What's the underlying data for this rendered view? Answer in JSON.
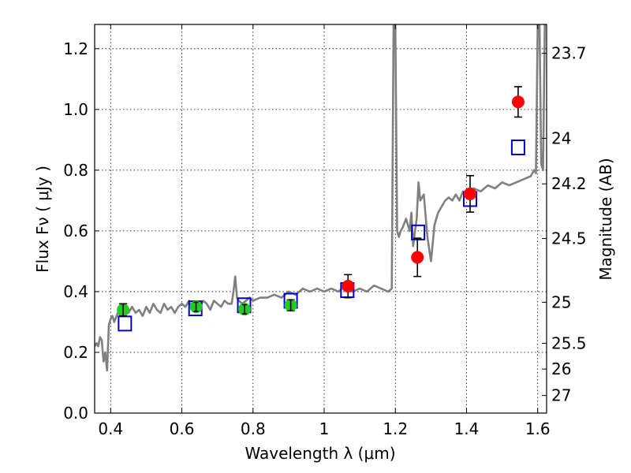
{
  "chart_data": {
    "type": "scatter",
    "xlabel": "Wavelength  λ (μm)",
    "ylabel": "Flux  Fν  ( μJy )",
    "ylabel_right": "Magnitude (AB)",
    "xlim": [
      0.355,
      1.625
    ],
    "ylim": [
      0.0,
      1.28
    ],
    "grid": true,
    "x_ticks": [
      {
        "value": 0.4,
        "label": "0.4"
      },
      {
        "value": 0.6,
        "label": "0.6"
      },
      {
        "value": 0.8,
        "label": "0.8"
      },
      {
        "value": 1.0,
        "label": "1"
      },
      {
        "value": 1.2,
        "label": "1.2"
      },
      {
        "value": 1.4,
        "label": "1.4"
      },
      {
        "value": 1.6,
        "label": "1.6"
      }
    ],
    "y_ticks": [
      {
        "value": 0.0,
        "label": "0.0"
      },
      {
        "value": 0.2,
        "label": "0.2"
      },
      {
        "value": 0.4,
        "label": "0.4"
      },
      {
        "value": 0.6,
        "label": "0.6"
      },
      {
        "value": 0.8,
        "label": "0.8"
      },
      {
        "value": 1.0,
        "label": "1.0"
      },
      {
        "value": 1.2,
        "label": "1.2"
      }
    ],
    "right_ticks": [
      {
        "flux": 1.185,
        "label": "23.7"
      },
      {
        "flux": 0.905,
        "label": "24"
      },
      {
        "flux": 0.755,
        "label": "24.2"
      },
      {
        "flux": 0.575,
        "label": "24.5"
      },
      {
        "flux": 0.365,
        "label": "25"
      },
      {
        "flux": 0.23,
        "label": "25.5"
      },
      {
        "flux": 0.145,
        "label": "26"
      },
      {
        "flux": 0.058,
        "label": "27"
      }
    ],
    "series": [
      {
        "name": "model spectrum",
        "kind": "line",
        "color": "#808080",
        "x": [
          0.355,
          0.36,
          0.365,
          0.37,
          0.375,
          0.38,
          0.385,
          0.39,
          0.395,
          0.4,
          0.405,
          0.41,
          0.42,
          0.43,
          0.44,
          0.45,
          0.46,
          0.47,
          0.48,
          0.49,
          0.5,
          0.51,
          0.52,
          0.53,
          0.54,
          0.55,
          0.56,
          0.57,
          0.58,
          0.59,
          0.6,
          0.61,
          0.62,
          0.63,
          0.64,
          0.65,
          0.66,
          0.67,
          0.68,
          0.69,
          0.7,
          0.71,
          0.72,
          0.73,
          0.74,
          0.745,
          0.75,
          0.755,
          0.76,
          0.77,
          0.78,
          0.79,
          0.8,
          0.82,
          0.84,
          0.86,
          0.88,
          0.9,
          0.92,
          0.94,
          0.96,
          0.98,
          1.0,
          1.02,
          1.04,
          1.06,
          1.08,
          1.1,
          1.12,
          1.14,
          1.16,
          1.18,
          1.19,
          1.195,
          1.2,
          1.205,
          1.21,
          1.215,
          1.22,
          1.23,
          1.24,
          1.245,
          1.25,
          1.255,
          1.26,
          1.265,
          1.27,
          1.28,
          1.29,
          1.3,
          1.31,
          1.32,
          1.33,
          1.34,
          1.35,
          1.36,
          1.37,
          1.38,
          1.39,
          1.4,
          1.42,
          1.44,
          1.46,
          1.48,
          1.5,
          1.52,
          1.54,
          1.56,
          1.58,
          1.59,
          1.595,
          1.6,
          1.605,
          1.61,
          1.615,
          1.62,
          1.625
        ],
        "y": [
          0.22,
          0.23,
          0.22,
          0.25,
          0.24,
          0.17,
          0.2,
          0.14,
          0.29,
          0.31,
          0.32,
          0.3,
          0.33,
          0.32,
          0.34,
          0.33,
          0.35,
          0.33,
          0.34,
          0.32,
          0.35,
          0.33,
          0.36,
          0.34,
          0.33,
          0.36,
          0.34,
          0.35,
          0.33,
          0.35,
          0.36,
          0.35,
          0.37,
          0.34,
          0.36,
          0.35,
          0.37,
          0.36,
          0.34,
          0.37,
          0.36,
          0.35,
          0.37,
          0.36,
          0.36,
          0.4,
          0.45,
          0.38,
          0.37,
          0.36,
          0.37,
          0.38,
          0.37,
          0.38,
          0.38,
          0.39,
          0.38,
          0.4,
          0.39,
          0.41,
          0.4,
          0.41,
          0.4,
          0.41,
          0.4,
          0.42,
          0.4,
          0.41,
          0.4,
          0.42,
          0.41,
          0.4,
          0.41,
          1.28,
          1.28,
          0.6,
          0.58,
          0.6,
          0.61,
          0.64,
          0.6,
          0.66,
          0.55,
          0.6,
          0.64,
          0.76,
          0.7,
          0.72,
          0.58,
          0.5,
          0.62,
          0.66,
          0.68,
          0.7,
          0.71,
          0.7,
          0.72,
          0.7,
          0.73,
          0.72,
          0.74,
          0.73,
          0.75,
          0.74,
          0.76,
          0.75,
          0.76,
          0.77,
          0.78,
          0.8,
          0.79,
          1.28,
          1.28,
          0.82,
          0.8,
          1.28,
          1.28
        ]
      },
      {
        "name": "blue model photometry",
        "kind": "open-square",
        "color": "#0000cc",
        "x": [
          0.44,
          0.638,
          0.775,
          0.906,
          1.065,
          1.264,
          1.41,
          1.545
        ],
        "y": [
          0.295,
          0.345,
          0.355,
          0.37,
          0.405,
          0.595,
          0.705,
          0.875
        ]
      },
      {
        "name": "green observed points",
        "kind": "marker",
        "color": "#22cc22",
        "x": [
          0.435,
          0.64,
          0.776,
          0.906
        ],
        "y": [
          0.34,
          0.35,
          0.342,
          0.355
        ],
        "err": [
          0.02,
          0.015,
          0.015,
          0.018
        ]
      },
      {
        "name": "red observed points",
        "kind": "marker",
        "color": "#ff0000",
        "x": [
          1.067,
          1.262,
          1.41,
          1.545
        ],
        "y": [
          0.418,
          0.513,
          0.722,
          1.025
        ],
        "err": [
          0.038,
          0.063,
          0.06,
          0.05
        ]
      }
    ]
  }
}
